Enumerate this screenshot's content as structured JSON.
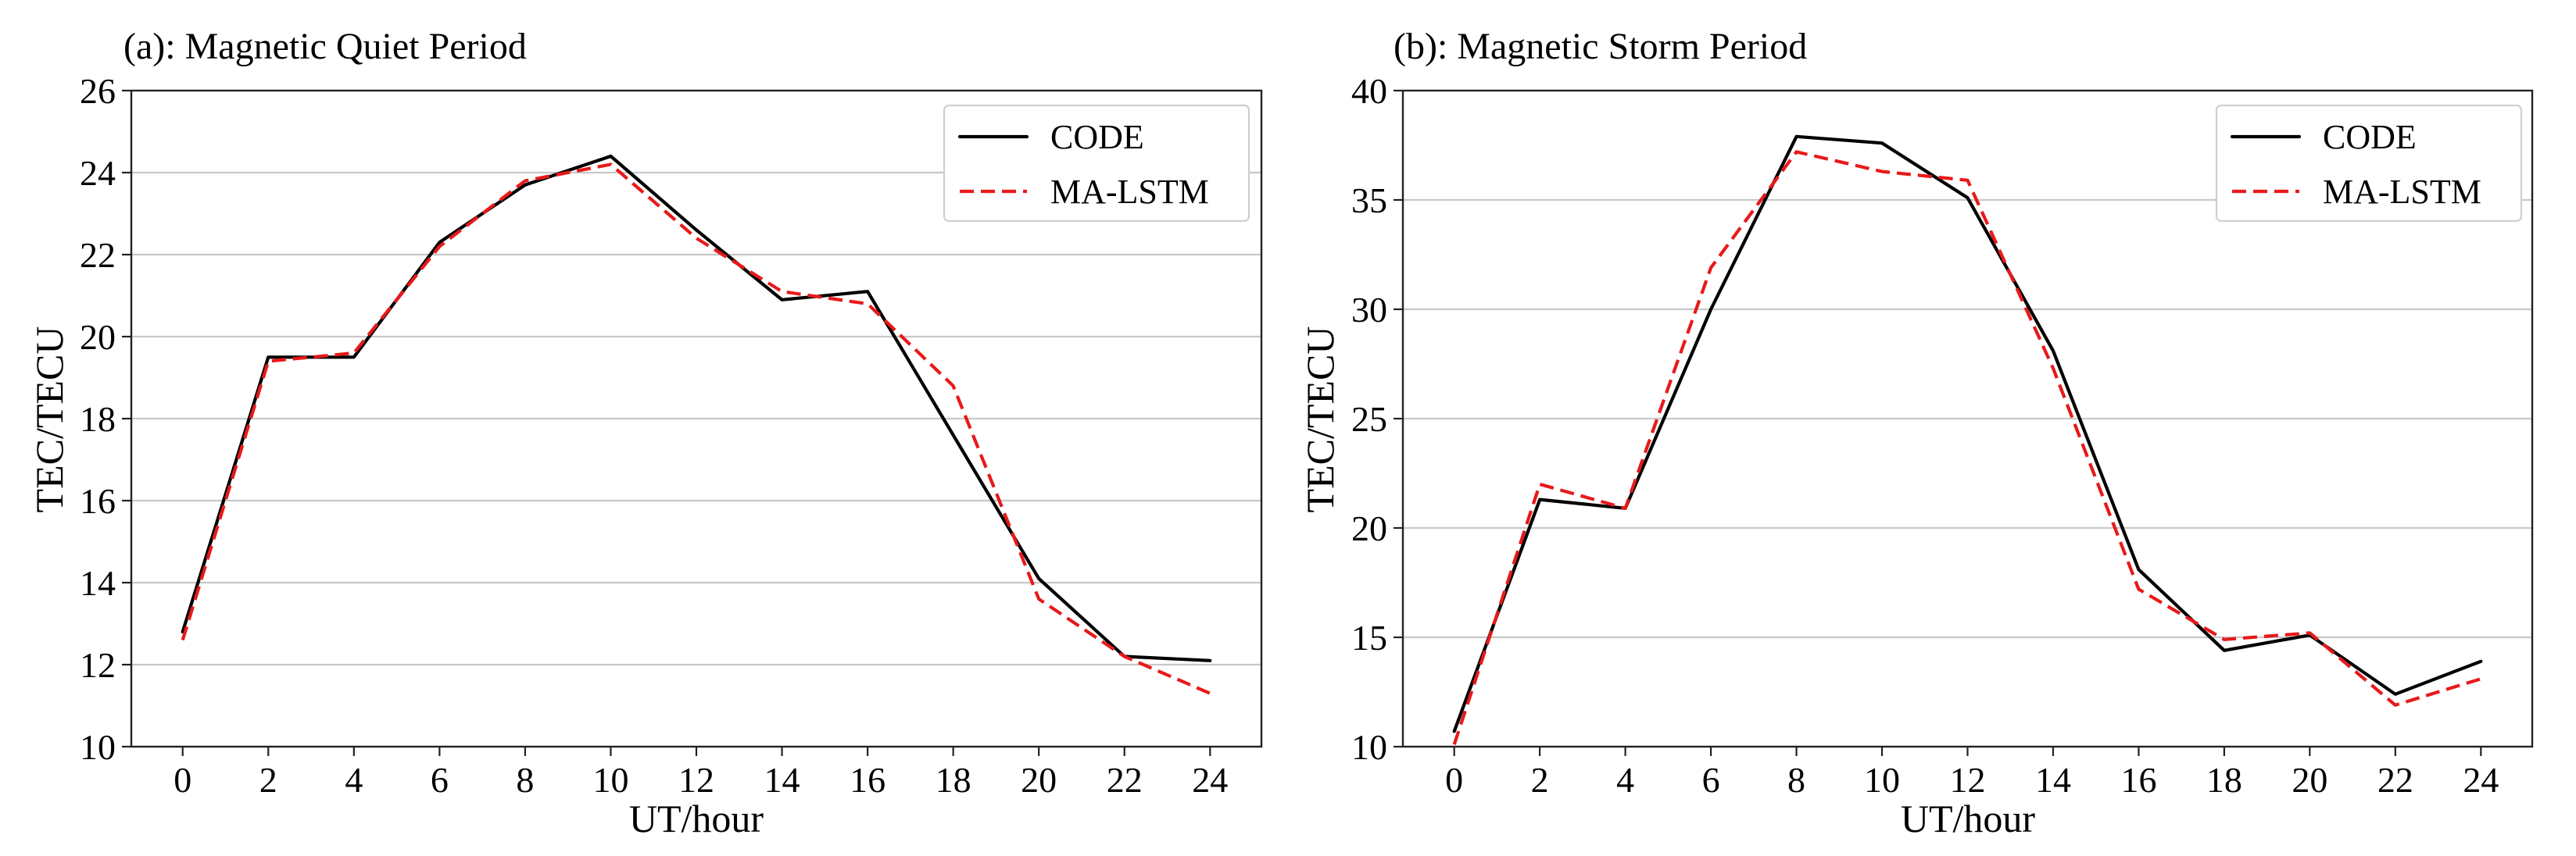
{
  "chart_data": [
    {
      "type": "line",
      "title": "(a):  Magnetic Quiet Period",
      "xlabel": "UT/hour",
      "ylabel": "TEC/TECU",
      "x": [
        0,
        2,
        4,
        6,
        8,
        10,
        12,
        14,
        16,
        18,
        20,
        22,
        24
      ],
      "xlim": [
        -1.2,
        25.2
      ],
      "ylim": [
        10,
        26
      ],
      "xticks": [
        0,
        2,
        4,
        6,
        8,
        10,
        12,
        14,
        16,
        18,
        20,
        22,
        24
      ],
      "yticks": [
        10,
        12,
        14,
        16,
        18,
        20,
        22,
        24,
        26
      ],
      "grid": "horizontal",
      "legend_position": "top-right",
      "series": [
        {
          "name": "CODE",
          "color": "#000000",
          "style": "solid",
          "values": [
            12.8,
            19.5,
            19.5,
            22.3,
            23.7,
            24.4,
            22.6,
            20.9,
            21.1,
            17.6,
            14.1,
            12.2,
            12.1
          ]
        },
        {
          "name": "MA-LSTM",
          "color": "#e8191a",
          "style": "dashed",
          "values": [
            12.6,
            19.4,
            19.6,
            22.2,
            23.8,
            24.2,
            22.4,
            21.1,
            20.8,
            18.8,
            13.6,
            12.2,
            11.3
          ]
        }
      ]
    },
    {
      "type": "line",
      "title": "(b):  Magnetic Storm Period",
      "xlabel": "UT/hour",
      "ylabel": "TEC/TECU",
      "x": [
        0,
        2,
        4,
        6,
        8,
        10,
        12,
        14,
        16,
        18,
        20,
        22,
        24
      ],
      "xlim": [
        -1.2,
        25.2
      ],
      "ylim": [
        10,
        40
      ],
      "xticks": [
        0,
        2,
        4,
        6,
        8,
        10,
        12,
        14,
        16,
        18,
        20,
        22,
        24
      ],
      "yticks": [
        10,
        15,
        20,
        25,
        30,
        35,
        40
      ],
      "grid": "horizontal",
      "legend_position": "top-right",
      "series": [
        {
          "name": "CODE",
          "color": "#000000",
          "style": "solid",
          "values": [
            10.7,
            21.3,
            20.9,
            30.0,
            37.9,
            37.6,
            35.1,
            28.1,
            18.1,
            14.4,
            15.1,
            12.4,
            13.9
          ]
        },
        {
          "name": "MA-LSTM",
          "color": "#e8191a",
          "style": "dashed",
          "values": [
            10.1,
            22.0,
            20.9,
            31.9,
            37.2,
            36.3,
            35.9,
            27.3,
            17.2,
            14.9,
            15.2,
            11.9,
            13.1
          ]
        }
      ]
    }
  ]
}
